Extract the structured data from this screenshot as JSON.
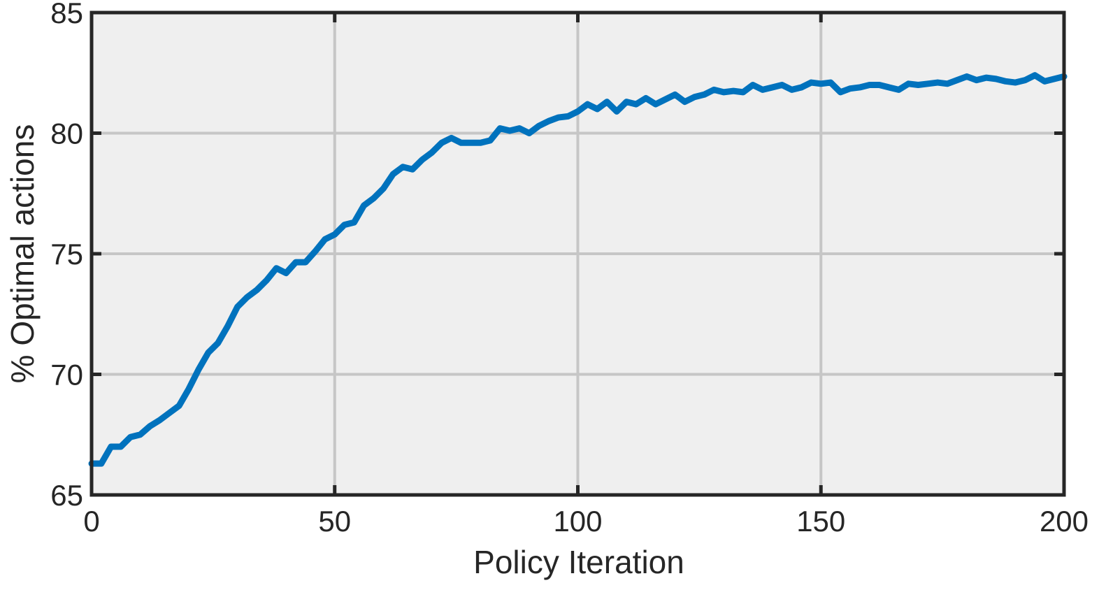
{
  "chart_data": {
    "type": "line",
    "xlabel": "Policy Iteration",
    "ylabel": "% Optimal actions",
    "x": [
      0,
      2,
      4,
      6,
      8,
      10,
      12,
      14,
      16,
      18,
      20,
      22,
      24,
      26,
      28,
      30,
      32,
      34,
      36,
      38,
      40,
      42,
      44,
      46,
      48,
      50,
      52,
      54,
      56,
      58,
      60,
      62,
      64,
      66,
      68,
      70,
      72,
      74,
      76,
      78,
      80,
      82,
      84,
      86,
      88,
      90,
      92,
      94,
      96,
      98,
      100,
      102,
      104,
      106,
      108,
      110,
      112,
      114,
      116,
      118,
      120,
      122,
      124,
      126,
      128,
      130,
      132,
      134,
      136,
      138,
      140,
      142,
      144,
      146,
      148,
      150,
      152,
      154,
      156,
      158,
      160,
      162,
      164,
      166,
      168,
      170,
      172,
      174,
      176,
      178,
      180,
      182,
      184,
      186,
      188,
      190,
      192,
      194,
      196,
      198,
      200
    ],
    "series": [
      {
        "color": "#0072bd",
        "values": [
          66.3,
          66.3,
          67.0,
          67.0,
          67.4,
          67.5,
          67.85,
          68.1,
          68.4,
          68.7,
          69.4,
          70.2,
          70.9,
          71.3,
          72.0,
          72.8,
          73.2,
          73.5,
          73.9,
          74.4,
          74.2,
          74.65,
          74.65,
          75.1,
          75.6,
          75.8,
          76.2,
          76.3,
          77.0,
          77.3,
          77.7,
          78.3,
          78.6,
          78.5,
          78.9,
          79.2,
          79.6,
          79.8,
          79.6,
          79.6,
          79.6,
          79.7,
          80.2,
          80.1,
          80.2,
          80.0,
          80.3,
          80.5,
          80.65,
          80.7,
          80.9,
          81.2,
          81.0,
          81.3,
          80.9,
          81.3,
          81.2,
          81.45,
          81.2,
          81.4,
          81.6,
          81.3,
          81.5,
          81.6,
          81.8,
          81.7,
          81.75,
          81.7,
          82.0,
          81.8,
          81.9,
          82.0,
          81.8,
          81.9,
          82.1,
          82.05,
          82.1,
          81.7,
          81.85,
          81.9,
          82.0,
          82.0,
          81.9,
          81.8,
          82.05,
          82.0,
          82.05,
          82.1,
          82.05,
          82.2,
          82.35,
          82.2,
          82.3,
          82.25,
          82.15,
          82.1,
          82.2,
          82.4,
          82.15,
          82.25,
          82.35
        ]
      }
    ],
    "xlim": [
      0,
      200
    ],
    "ylim": [
      65,
      85
    ],
    "xticks": [
      0,
      50,
      100,
      150,
      200
    ],
    "yticks": [
      65,
      70,
      75,
      80,
      85
    ],
    "grid": true
  }
}
